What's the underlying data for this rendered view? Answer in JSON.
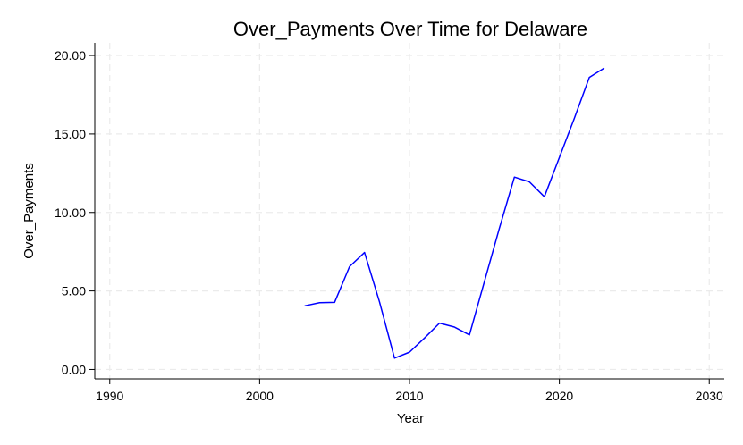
{
  "chart_data": {
    "type": "line",
    "title": "Over_Payments Over Time for Delaware",
    "xlabel": "Year",
    "ylabel": "Over_Payments",
    "xlim": [
      1989,
      2031
    ],
    "ylim": [
      -0.6,
      20.8
    ],
    "xticks": [
      1990,
      2000,
      2010,
      2020,
      2030
    ],
    "yticks": [
      0,
      5,
      10,
      15,
      20
    ],
    "ytick_labels": [
      "0.00",
      "5.00",
      "10.00",
      "15.00",
      "20.00"
    ],
    "grid": true,
    "line_color": "#0000ff",
    "series": [
      {
        "x": [
          2003,
          2004,
          2005,
          2006,
          2007,
          2008,
          2009,
          2010,
          2011,
          2012,
          2013,
          2014,
          2015,
          2016,
          2017,
          2018,
          2019,
          2020,
          2021,
          2022,
          2023
        ],
        "values": [
          4.05,
          4.25,
          4.27,
          6.55,
          7.45,
          4.3,
          0.72,
          1.1,
          2.0,
          2.95,
          2.7,
          2.2,
          5.6,
          9.0,
          12.25,
          11.95,
          11.0,
          13.5,
          16.0,
          18.6,
          19.2
        ]
      }
    ]
  }
}
